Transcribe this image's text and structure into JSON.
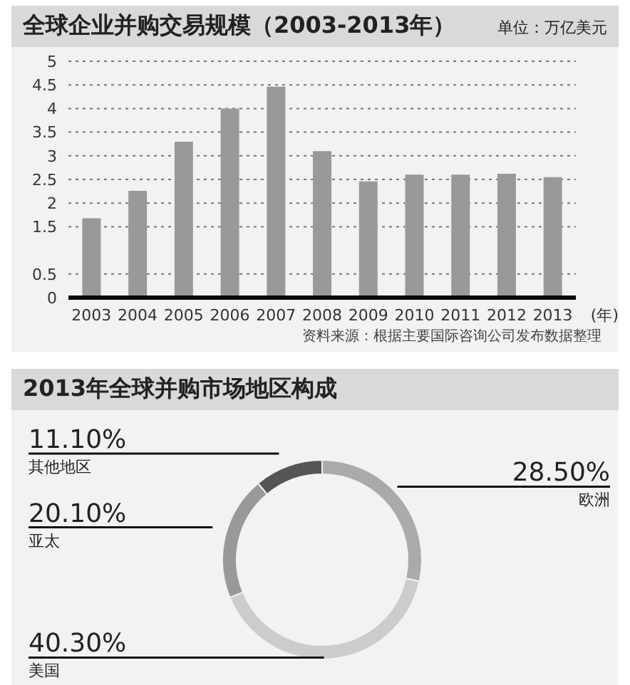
{
  "chart_data": [
    {
      "type": "bar",
      "title": "全球企业并购交易规模（2003-2013年）",
      "subtitle": "单位：万亿美元",
      "xlabel": "(年)",
      "categories": [
        "2003",
        "2004",
        "2005",
        "2006",
        "2007",
        "2008",
        "2009",
        "2010",
        "2011",
        "2012",
        "2013"
      ],
      "values": [
        1.68,
        2.26,
        3.3,
        4.0,
        4.46,
        3.1,
        2.46,
        2.6,
        2.6,
        2.62,
        2.55
      ],
      "color": "#999999",
      "ylim": [
        0,
        5
      ],
      "yticks": [
        0,
        0.5,
        1.5,
        2,
        2.5,
        3,
        3.5,
        4,
        4.5,
        5
      ],
      "grid": "y",
      "annotations": [
        "资料来源：根据主要国际咨询公司发布数据整理"
      ]
    },
    {
      "type": "donut",
      "title": "2013年全球并购市场地区构成",
      "categories": [
        "欧洲",
        "美国",
        "亚太",
        "其他地区"
      ],
      "values": [
        28.5,
        40.3,
        20.1,
        11.1
      ],
      "colors": [
        "#aaaaaa",
        "#cccccc",
        "#999999",
        "#555555"
      ],
      "value_labels": [
        "28.50%",
        "40.30%",
        "20.10%",
        "11.10%"
      ]
    }
  ]
}
